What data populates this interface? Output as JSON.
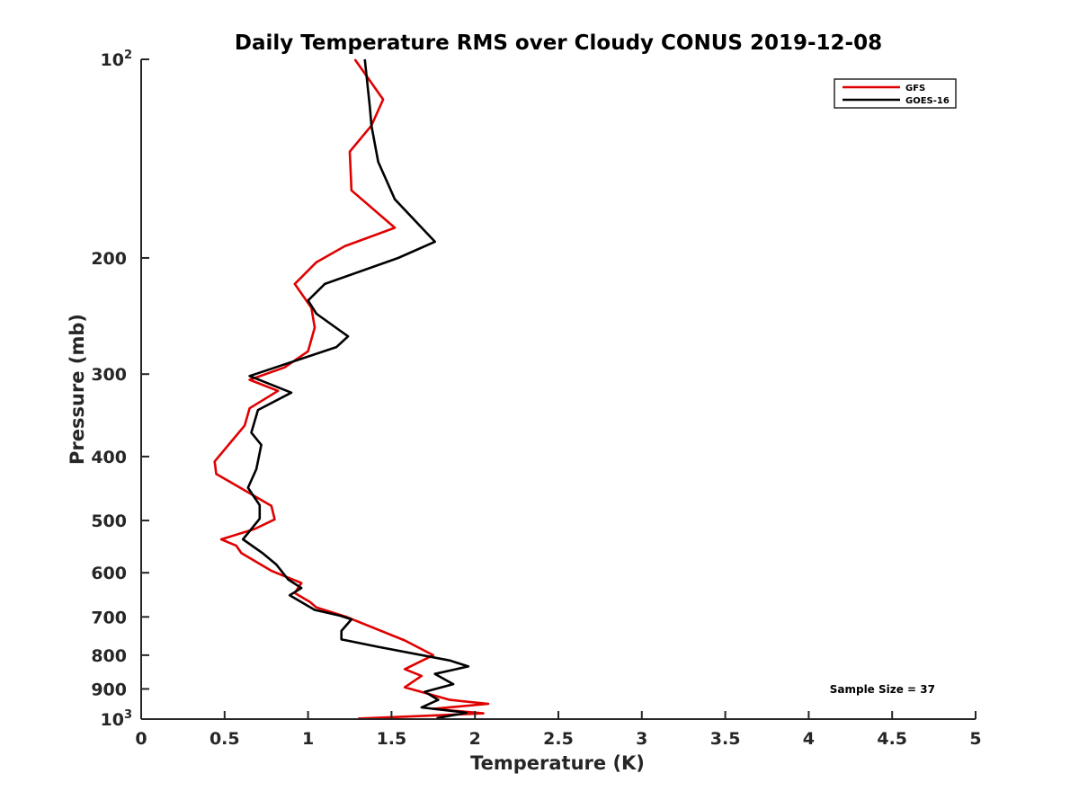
{
  "chart_data": {
    "type": "line",
    "title": "Daily Temperature RMS over Cloudy CONUS 2019-12-08",
    "xlabel": "Temperature (K)",
    "ylabel": "Pressure (mb)",
    "xlim": [
      0,
      5
    ],
    "ylim": [
      100,
      1000
    ],
    "yscale": "log",
    "y_reversed": true,
    "grid": false,
    "legend_position": "top-right",
    "x_ticks": [
      "0",
      "0.5",
      "1",
      "1.5",
      "2",
      "2.5",
      "3",
      "3.5",
      "4",
      "4.5",
      "5"
    ],
    "x_tick_values": [
      0,
      0.5,
      1,
      1.5,
      2,
      2.5,
      3,
      3.5,
      4,
      4.5,
      5
    ],
    "y_ticks": [
      {
        "value": 100,
        "base": "10",
        "exp": "2",
        "label": ""
      },
      {
        "value": 200,
        "label": "200"
      },
      {
        "value": 300,
        "label": "300"
      },
      {
        "value": 400,
        "label": "400"
      },
      {
        "value": 500,
        "label": "500"
      },
      {
        "value": 600,
        "label": "600"
      },
      {
        "value": 700,
        "label": "700"
      },
      {
        "value": 800,
        "label": "800"
      },
      {
        "value": 900,
        "label": "900"
      },
      {
        "value": 1000,
        "base": "10",
        "exp": "3",
        "label": ""
      }
    ],
    "annotation": "Sample Size = 37",
    "series": [
      {
        "name": "GFS",
        "color": "#e00000",
        "x": [
          1.28,
          1.45,
          1.38,
          1.25,
          1.26,
          1.52,
          1.22,
          1.05,
          0.92,
          1.02,
          1.04,
          1.0,
          0.86,
          0.65,
          0.82,
          0.65,
          0.62,
          0.44,
          0.45,
          0.78,
          0.8,
          0.68,
          0.48,
          0.57,
          0.6,
          0.78,
          0.96,
          0.92,
          1.01,
          1.05,
          1.23,
          1.58,
          1.75,
          1.58,
          1.68,
          1.58,
          1.85,
          2.08,
          1.75,
          2.05,
          1.3
        ],
        "y": [
          100,
          115,
          126,
          138,
          158,
          180,
          192,
          203,
          219,
          238,
          255,
          277,
          293,
          306,
          318,
          338,
          359,
          407,
          425,
          475,
          498,
          515,
          534,
          546,
          560,
          596,
          622,
          644,
          664,
          677,
          700,
          760,
          800,
          840,
          860,
          895,
          935,
          948,
          965,
          980,
          998
        ]
      },
      {
        "name": "GOES-16",
        "color": "#000000",
        "x": [
          1.34,
          1.37,
          1.38,
          1.42,
          1.52,
          1.76,
          1.54,
          1.1,
          1.0,
          1.05,
          1.24,
          1.17,
          0.65,
          0.9,
          0.7,
          0.66,
          0.72,
          0.69,
          0.64,
          0.71,
          0.71,
          0.61,
          0.73,
          0.81,
          0.88,
          0.96,
          0.89,
          1.04,
          1.19,
          1.26,
          1.2,
          1.2,
          1.42,
          1.85,
          1.96,
          1.76,
          1.87,
          1.7,
          1.78,
          1.68,
          1.95,
          1.77
        ],
        "y": [
          100,
          118,
          126,
          143,
          163,
          189,
          200,
          219,
          232,
          243,
          263,
          273,
          302,
          320,
          340,
          368,
          384,
          418,
          446,
          474,
          497,
          534,
          561,
          583,
          614,
          633,
          649,
          683,
          697,
          706,
          735,
          757,
          777,
          815,
          832,
          854,
          885,
          909,
          935,
          960,
          978,
          997
        ]
      }
    ]
  }
}
